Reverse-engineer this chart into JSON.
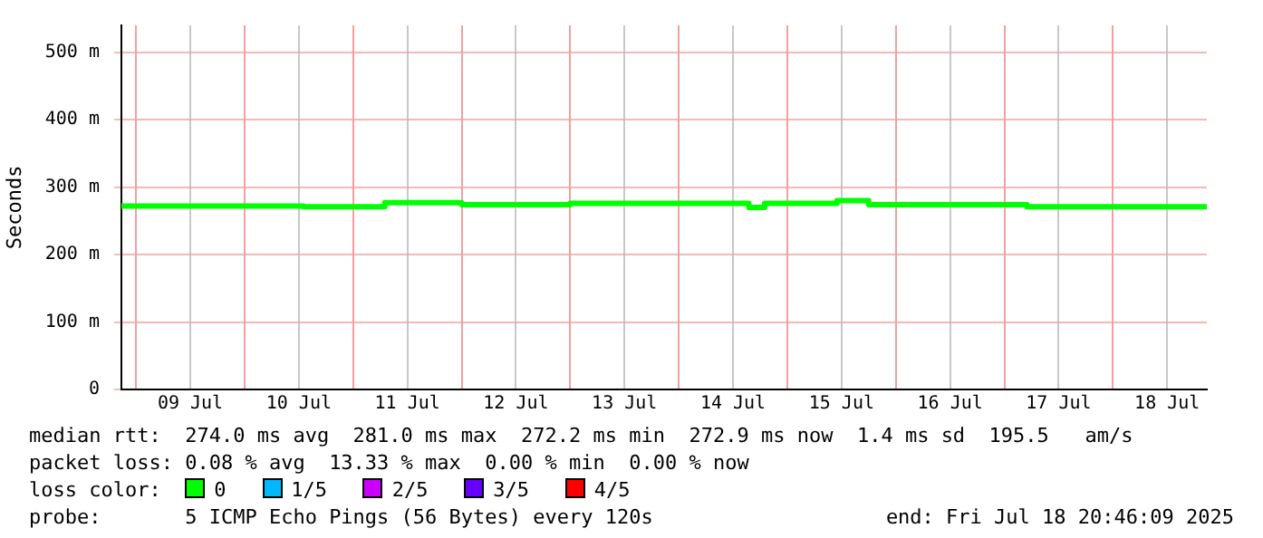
{
  "chart_data": {
    "type": "step",
    "ylabel": "Seconds",
    "xlim": [
      "2025-07-08T20:46",
      "2025-07-18T20:46"
    ],
    "xticks": [
      {
        "value": "2025-07-09T00:00",
        "label": null
      },
      {
        "value": "2025-07-09T12:00",
        "label": "09 Jul"
      },
      {
        "value": "2025-07-10T00:00",
        "label": null
      },
      {
        "value": "2025-07-10T12:00",
        "label": "10 Jul"
      },
      {
        "value": "2025-07-11T00:00",
        "label": null
      },
      {
        "value": "2025-07-11T12:00",
        "label": "11 Jul"
      },
      {
        "value": "2025-07-12T00:00",
        "label": null
      },
      {
        "value": "2025-07-12T12:00",
        "label": "12 Jul"
      },
      {
        "value": "2025-07-13T00:00",
        "label": null
      },
      {
        "value": "2025-07-13T12:00",
        "label": "13 Jul"
      },
      {
        "value": "2025-07-14T00:00",
        "label": null
      },
      {
        "value": "2025-07-14T12:00",
        "label": "14 Jul"
      },
      {
        "value": "2025-07-15T00:00",
        "label": null
      },
      {
        "value": "2025-07-15T12:00",
        "label": "15 Jul"
      },
      {
        "value": "2025-07-16T00:00",
        "label": null
      },
      {
        "value": "2025-07-16T12:00",
        "label": "16 Jul"
      },
      {
        "value": "2025-07-17T00:00",
        "label": null
      },
      {
        "value": "2025-07-17T12:00",
        "label": "17 Jul"
      },
      {
        "value": "2025-07-18T00:00",
        "label": null
      },
      {
        "value": "2025-07-18T12:00",
        "label": "18 Jul"
      }
    ],
    "ylim": [
      0,
      540
    ],
    "yticks": [
      {
        "value": 0,
        "label": "0"
      },
      {
        "value": 100,
        "label": "100 m"
      },
      {
        "value": 200,
        "label": "200 m"
      },
      {
        "value": 300,
        "label": "300 m"
      },
      {
        "value": 400,
        "label": "400 m"
      },
      {
        "value": 500,
        "label": "500 m"
      }
    ],
    "grid": true,
    "legend": "bottom",
    "legend_title": "loss color:",
    "series": [
      {
        "name": "0",
        "color": "#00ff00",
        "x": [
          "2025-07-08T20:46",
          "2025-07-10T10:00",
          "2025-07-10T13:00",
          "2025-07-11T07:00",
          "2025-07-12T00:00",
          "2025-07-13T00:00",
          "2025-07-14T15:30",
          "2025-07-14T19:00",
          "2025-07-15T11:00",
          "2025-07-15T18:00",
          "2025-07-17T05:00",
          "2025-07-18T20:46"
        ],
        "values": [
          272,
          272,
          271,
          277,
          274,
          276,
          270,
          276,
          280,
          274,
          271,
          271
        ]
      },
      {
        "name": "1/5",
        "color": "#00b8ff"
      },
      {
        "name": "2/5",
        "color": "#cc00ff"
      },
      {
        "name": "3/5",
        "color": "#6600ff"
      },
      {
        "name": "4/5",
        "color": "#ff0000"
      }
    ],
    "annotations": [
      "median rtt:  274.0 ms avg  281.0 ms max  272.2 ms min  272.9 ms now  1.4 ms sd  195.5   am/s",
      "packet loss: 0.08 % avg  13.33 % max  0.00 % min  0.00 % now",
      "probe:       5 ICMP Echo Pings (56 Bytes) every 120s",
      "end: Fri Jul 18 20:46:09 2025"
    ]
  }
}
